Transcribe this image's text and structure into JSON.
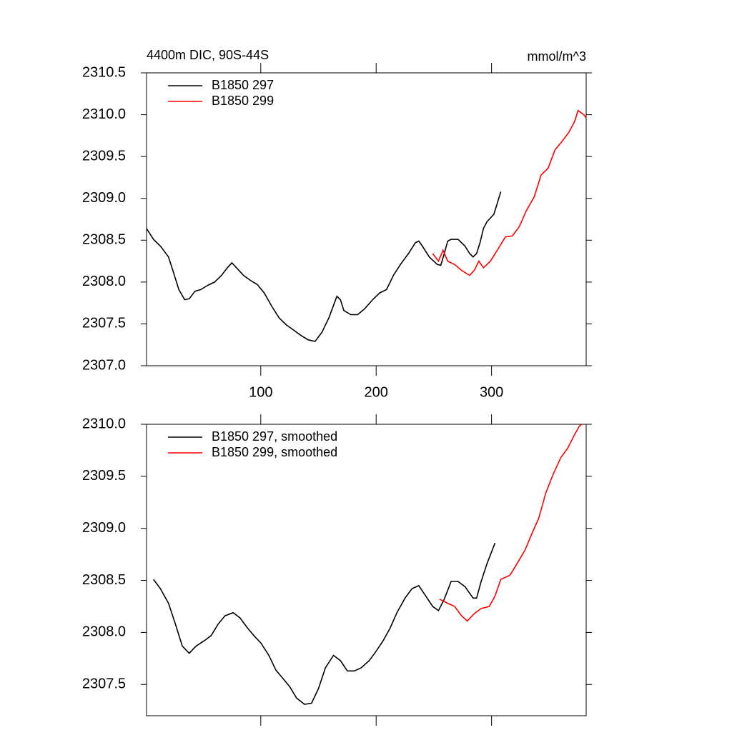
{
  "chart_data": [
    {
      "type": "line",
      "title": "4400m DIC, 90S-44S",
      "units": "mmol/m^3",
      "xlim": [
        1,
        382
      ],
      "xticks": [
        100,
        200,
        300
      ],
      "show_xtick_labels": true,
      "ylim": [
        2307.0,
        2310.5
      ],
      "yticks": [
        {
          "value": 2307.0,
          "label": "2307.0"
        },
        2307.5,
        {
          "value": 2308.0,
          "label": "2308.0"
        },
        2308.5,
        {
          "value": 2309.0,
          "label": "2309.0"
        },
        2309.5,
        {
          "value": 2310.0,
          "label": "2310.0"
        },
        2310.5
      ],
      "legend": "upper left",
      "series": [
        {
          "name": "B1850 297",
          "color": "#000000",
          "x": [
            1,
            7,
            13,
            20,
            24,
            29,
            34,
            38,
            43,
            48,
            54,
            60,
            66,
            71,
            75,
            79,
            85,
            91,
            97,
            103,
            110,
            116,
            122,
            128,
            135,
            141,
            147,
            153,
            159,
            166,
            169,
            172,
            178,
            184,
            190,
            197,
            203,
            209,
            215,
            221,
            228,
            234,
            237,
            240,
            246,
            253,
            256,
            259,
            262,
            265,
            271,
            277,
            281,
            284,
            287,
            290,
            293,
            296,
            302,
            308
          ],
          "values": [
            2308.64,
            2308.51,
            2308.43,
            2308.3,
            2308.13,
            2307.91,
            2307.79,
            2307.8,
            2307.89,
            2307.91,
            2307.96,
            2308.0,
            2308.08,
            2308.17,
            2308.23,
            2308.17,
            2308.08,
            2308.02,
            2307.97,
            2307.87,
            2307.7,
            2307.57,
            2307.49,
            2307.43,
            2307.36,
            2307.31,
            2307.29,
            2307.4,
            2307.57,
            2307.83,
            2307.79,
            2307.66,
            2307.61,
            2307.61,
            2307.68,
            2307.79,
            2307.87,
            2307.91,
            2308.08,
            2308.21,
            2308.34,
            2308.47,
            2308.49,
            2308.43,
            2308.3,
            2308.21,
            2308.2,
            2308.34,
            2308.49,
            2308.51,
            2308.51,
            2308.43,
            2308.34,
            2308.3,
            2308.34,
            2308.47,
            2308.64,
            2308.72,
            2308.81,
            2309.08
          ]
        },
        {
          "name": "B1850 299",
          "color": "#ff0000",
          "x": [
            249,
            254,
            258,
            262,
            268,
            274,
            281,
            285,
            289,
            293,
            299,
            305,
            312,
            318,
            324,
            330,
            337,
            343,
            349,
            355,
            361,
            367,
            372,
            375,
            380,
            382
          ],
          "values": [
            2308.34,
            2308.25,
            2308.38,
            2308.25,
            2308.21,
            2308.14,
            2308.08,
            2308.14,
            2308.25,
            2308.17,
            2308.25,
            2308.38,
            2308.54,
            2308.55,
            2308.66,
            2308.85,
            2309.02,
            2309.28,
            2309.36,
            2309.58,
            2309.68,
            2309.79,
            2309.92,
            2310.05,
            2310.0,
            2309.96
          ]
        }
      ]
    },
    {
      "type": "line",
      "xlim": [
        1,
        382
      ],
      "xticks": [
        100,
        200,
        300
      ],
      "show_xtick_labels": false,
      "ylim": [
        2307.2,
        2310.0
      ],
      "yticks": [
        2307.5,
        {
          "value": 2308.0,
          "label": "2308.0"
        },
        2308.5,
        {
          "value": 2309.0,
          "label": "2309.0"
        },
        2309.5,
        {
          "value": 2310.0,
          "label": "2310.0"
        }
      ],
      "legend": "upper left",
      "series": [
        {
          "name": "B1850 297, smoothed",
          "color": "#000000",
          "x": [
            7,
            13,
            20,
            26,
            32,
            38,
            44,
            51,
            57,
            63,
            69,
            76,
            82,
            88,
            94,
            100,
            107,
            113,
            119,
            125,
            131,
            138,
            144,
            150,
            156,
            163,
            169,
            175,
            181,
            187,
            194,
            200,
            206,
            212,
            218,
            225,
            231,
            237,
            243,
            249,
            254,
            259,
            265,
            271,
            277,
            284,
            287,
            291,
            296,
            303
          ],
          "values": [
            2308.51,
            2308.42,
            2308.28,
            2308.08,
            2307.87,
            2307.8,
            2307.87,
            2307.92,
            2307.97,
            2308.08,
            2308.16,
            2308.19,
            2308.14,
            2308.05,
            2307.97,
            2307.9,
            2307.78,
            2307.64,
            2307.56,
            2307.48,
            2307.37,
            2307.31,
            2307.32,
            2307.46,
            2307.66,
            2307.78,
            2307.73,
            2307.63,
            2307.63,
            2307.66,
            2307.73,
            2307.82,
            2307.92,
            2308.04,
            2308.19,
            2308.33,
            2308.42,
            2308.45,
            2308.35,
            2308.25,
            2308.21,
            2308.32,
            2308.49,
            2308.49,
            2308.44,
            2308.33,
            2308.33,
            2308.49,
            2308.66,
            2308.86
          ]
        },
        {
          "name": "B1850 299, smoothed",
          "color": "#ff0000",
          "x": [
            255,
            262,
            268,
            274,
            279,
            285,
            291,
            298,
            303,
            308,
            316,
            322,
            329,
            335,
            341,
            347,
            353,
            360,
            366,
            371,
            376,
            378
          ],
          "values": [
            2308.32,
            2308.28,
            2308.25,
            2308.16,
            2308.11,
            2308.18,
            2308.23,
            2308.25,
            2308.35,
            2308.51,
            2308.55,
            2308.66,
            2308.79,
            2308.95,
            2309.1,
            2309.34,
            2309.51,
            2309.68,
            2309.77,
            2309.88,
            2309.98,
            2310.0
          ]
        }
      ]
    }
  ]
}
